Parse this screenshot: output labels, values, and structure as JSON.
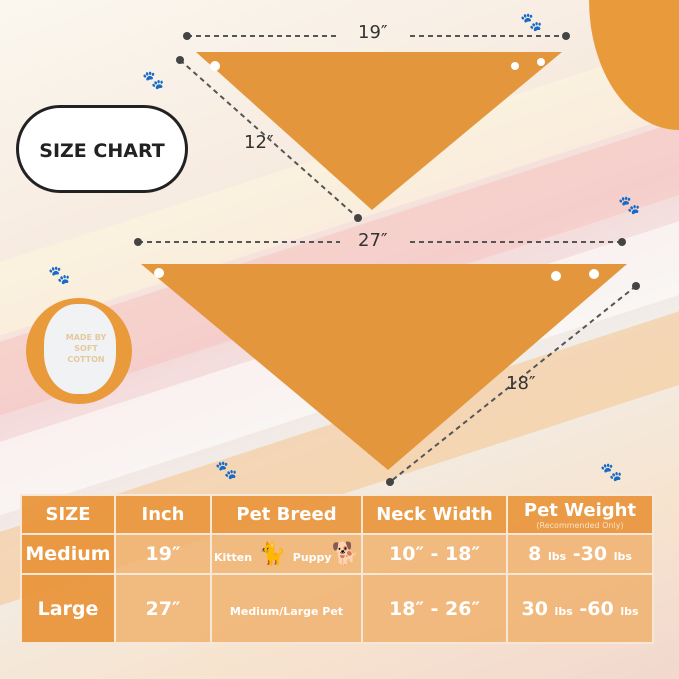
{
  "badge": {
    "title": "SIZE CHART"
  },
  "cotton": {
    "text": "MADE BY SOFT COTTON"
  },
  "dimensions": {
    "medium_width": "19″",
    "medium_height": "12″",
    "large_width": "27″",
    "large_height": "18″"
  },
  "colors": {
    "accent": "#e99b3c",
    "fabric": "#e4963c"
  },
  "table": {
    "headers": [
      "SIZE",
      "Inch",
      "Pet Breed",
      "Neck Width",
      "Pet Weight"
    ],
    "weight_note": "(Recommended Only)",
    "rows": [
      {
        "size": "Medium",
        "inch": "19″",
        "breed_a": "Kitten",
        "breed_b": "Puppy",
        "neck": "10″ -  18″",
        "weight_min": "8",
        "weight_max": "-30",
        "unit": "lbs"
      },
      {
        "size": "Large",
        "inch": "27″",
        "breed": "Medium/Large Pet",
        "neck": "18″ -  26″",
        "weight_min": "30",
        "weight_max": "-60",
        "unit": "lbs"
      }
    ]
  }
}
